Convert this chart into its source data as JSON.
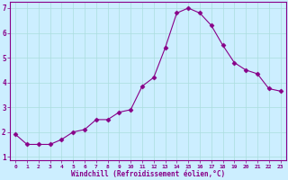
{
  "x": [
    0,
    1,
    2,
    3,
    4,
    5,
    6,
    7,
    8,
    9,
    10,
    11,
    12,
    13,
    14,
    15,
    16,
    17,
    18,
    19,
    20,
    21,
    22,
    23
  ],
  "y": [
    1.9,
    1.5,
    1.5,
    1.5,
    1.7,
    2.0,
    2.1,
    2.5,
    2.5,
    2.8,
    2.9,
    3.85,
    4.2,
    5.4,
    6.8,
    7.0,
    6.8,
    6.3,
    5.5,
    4.8,
    4.5,
    4.35,
    3.75,
    3.65
  ],
  "line_color": "#880088",
  "marker": "D",
  "marker_size": 2.5,
  "bg_color": "#cceeff",
  "grid_color": "#aadddd",
  "xlabel": "Windchill (Refroidissement éolien,°C)",
  "xlabel_color": "#880088",
  "tick_color": "#880088",
  "ylim": [
    1,
    7
  ],
  "xlim": [
    -0.5,
    23.5
  ],
  "yticks": [
    1,
    2,
    3,
    4,
    5,
    6,
    7
  ],
  "xticks": [
    0,
    1,
    2,
    3,
    4,
    5,
    6,
    7,
    8,
    9,
    10,
    11,
    12,
    13,
    14,
    15,
    16,
    17,
    18,
    19,
    20,
    21,
    22,
    23
  ],
  "spine_color": "#880088",
  "xtick_fontsize": 4.5,
  "ytick_fontsize": 5.5,
  "xlabel_fontsize": 5.5
}
